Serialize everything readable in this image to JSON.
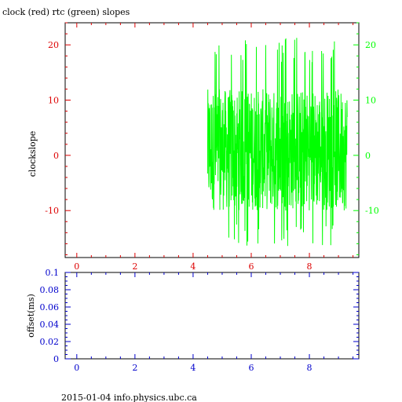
{
  "footer": "2015-01-04 info.physics.ubc.ca",
  "colors": {
    "red": "#dd0000",
    "green": "#00ff00",
    "blue": "#0000cc",
    "axis": "#000000"
  },
  "chart_data": [
    {
      "type": "line",
      "title": "clock (red) rtc (green) slopes",
      "ylabel": "clockslope",
      "xlabel": "",
      "xlim": [
        -0.4,
        9.7
      ],
      "ylim": [
        -18.5,
        24
      ],
      "x_ticks": [
        "0",
        "2",
        "4",
        "6",
        "8"
      ],
      "x_tick_values": [
        0,
        2,
        4,
        6,
        8
      ],
      "y_ticks_left": [
        "20",
        "10",
        "0",
        "-10"
      ],
      "y_ticks_right": [
        "20",
        "10",
        "0",
        "-10"
      ],
      "y_tick_values": [
        20,
        10,
        0,
        -10
      ],
      "grid": false,
      "series": [
        {
          "name": "rtc (green)",
          "color": "#00ff00",
          "x_range": [
            4.5,
            9.3
          ],
          "typical_range": [
            -10,
            12
          ],
          "extreme_range": [
            -16.5,
            21.5
          ],
          "samples": 700
        }
      ]
    },
    {
      "type": "line",
      "title": "",
      "ylabel": "offset(ms)",
      "xlabel": "",
      "xlim": [
        -0.4,
        9.7
      ],
      "ylim": [
        0,
        0.1
      ],
      "x_ticks": [
        "0",
        "2",
        "4",
        "6",
        "8"
      ],
      "x_tick_values": [
        0,
        2,
        4,
        6,
        8
      ],
      "y_ticks": [
        "0.1",
        "0.08",
        "0.06",
        "0.04",
        "0.02",
        "0"
      ],
      "y_tick_values": [
        0.1,
        0.08,
        0.06,
        0.04,
        0.02,
        0
      ],
      "grid": false,
      "series": []
    }
  ]
}
